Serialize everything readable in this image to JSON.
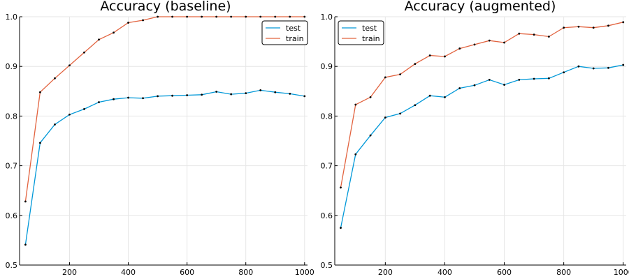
{
  "chart_data": [
    {
      "type": "line",
      "title": "Accuracy (baseline)",
      "xlabel": "",
      "ylabel": "",
      "xlim": [
        30,
        1010
      ],
      "ylim": [
        0.5,
        1.0
      ],
      "x_ticks": [
        200,
        400,
        600,
        800,
        1000
      ],
      "y_ticks": [
        0.5,
        0.6,
        0.7,
        0.8,
        0.9,
        1.0
      ],
      "x_tick_labels": [
        "200",
        "400",
        "600",
        "800",
        "1000"
      ],
      "y_tick_labels": [
        "0.5",
        "0.6",
        "0.7",
        "0.8",
        "0.9",
        "1.0"
      ],
      "grid": true,
      "legend_position": "top-right",
      "x": [
        50,
        100,
        150,
        200,
        250,
        300,
        350,
        400,
        450,
        500,
        550,
        600,
        650,
        700,
        750,
        800,
        850,
        900,
        950,
        1000
      ],
      "series": [
        {
          "name": "test",
          "color": "#0098d8",
          "values": [
            0.541,
            0.746,
            0.783,
            0.803,
            0.814,
            0.828,
            0.834,
            0.837,
            0.836,
            0.84,
            0.841,
            0.842,
            0.843,
            0.849,
            0.844,
            0.846,
            0.852,
            0.848,
            0.845,
            0.84
          ]
        },
        {
          "name": "train",
          "color": "#e2633f",
          "values": [
            0.628,
            0.848,
            0.876,
            0.902,
            0.928,
            0.954,
            0.968,
            0.988,
            0.993,
            1.0,
            1.0,
            1.0,
            1.0,
            1.0,
            1.0,
            1.0,
            1.0,
            1.0,
            1.0,
            1.0
          ]
        }
      ]
    },
    {
      "type": "line",
      "title": "Accuracy (augmented)",
      "xlabel": "",
      "ylabel": "",
      "xlim": [
        30,
        1010
      ],
      "ylim": [
        0.5,
        1.0
      ],
      "x_ticks": [
        200,
        400,
        600,
        800,
        1000
      ],
      "y_ticks": [
        0.5,
        0.6,
        0.7,
        0.8,
        0.9,
        1.0
      ],
      "x_tick_labels": [
        "200",
        "400",
        "600",
        "800",
        "1000"
      ],
      "y_tick_labels": [
        "0.5",
        "0.6",
        "0.7",
        "0.8",
        "0.9",
        "1.0"
      ],
      "grid": true,
      "legend_position": "top-left",
      "x": [
        50,
        100,
        150,
        200,
        250,
        300,
        350,
        400,
        450,
        500,
        550,
        600,
        650,
        700,
        750,
        800,
        850,
        900,
        950,
        1000
      ],
      "series": [
        {
          "name": "test",
          "color": "#0098d8",
          "values": [
            0.575,
            0.723,
            0.761,
            0.797,
            0.805,
            0.822,
            0.841,
            0.838,
            0.856,
            0.862,
            0.873,
            0.863,
            0.873,
            0.875,
            0.876,
            0.888,
            0.9,
            0.896,
            0.897,
            0.903
          ]
        },
        {
          "name": "train",
          "color": "#e2633f",
          "values": [
            0.656,
            0.823,
            0.838,
            0.878,
            0.884,
            0.905,
            0.922,
            0.92,
            0.936,
            0.944,
            0.952,
            0.948,
            0.966,
            0.964,
            0.96,
            0.978,
            0.98,
            0.978,
            0.982,
            0.989
          ]
        }
      ]
    }
  ]
}
